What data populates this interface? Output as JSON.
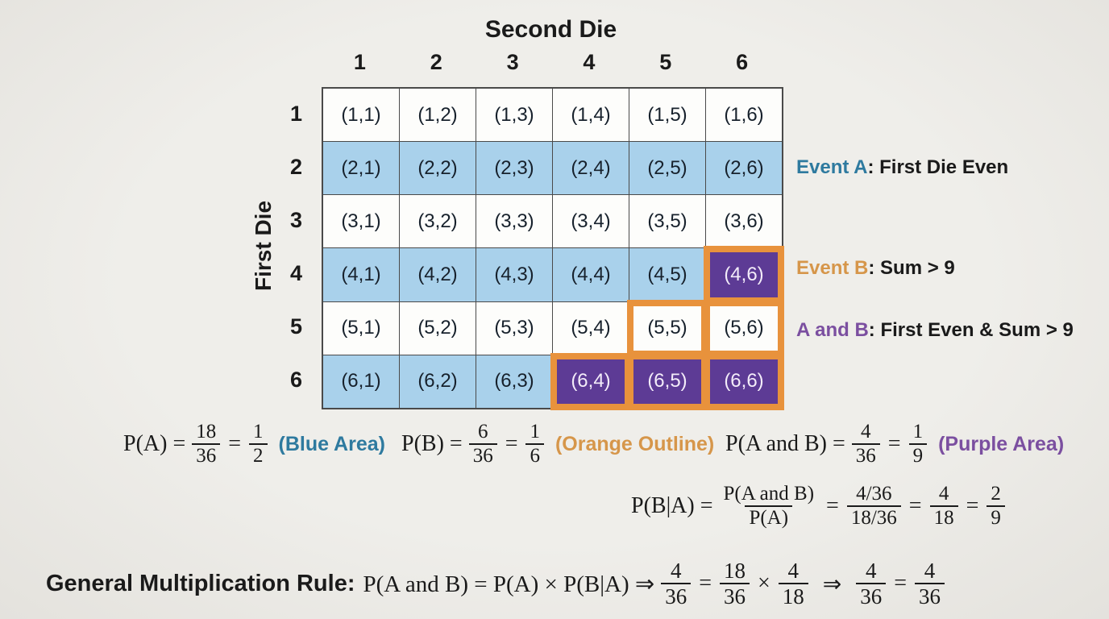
{
  "axes": {
    "col_axis": "Second Die",
    "row_axis": "First Die"
  },
  "table": {
    "col_headers": [
      "1",
      "2",
      "3",
      "4",
      "5",
      "6"
    ],
    "row_headers": [
      "1",
      "2",
      "3",
      "4",
      "5",
      "6"
    ],
    "cells": [
      [
        "(1,1)",
        "(1,2)",
        "(1,3)",
        "(1,4)",
        "(1,5)",
        "(1,6)"
      ],
      [
        "(2,1)",
        "(2,2)",
        "(2,3)",
        "(2,4)",
        "(2,5)",
        "(2,6)"
      ],
      [
        "(3,1)",
        "(3,2)",
        "(3,3)",
        "(3,4)",
        "(3,5)",
        "(3,6)"
      ],
      [
        "(4,1)",
        "(4,2)",
        "(4,3)",
        "(4,4)",
        "(4,5)",
        "(4,6)"
      ],
      [
        "(5,1)",
        "(5,2)",
        "(5,3)",
        "(5,4)",
        "(5,5)",
        "(5,6)"
      ],
      [
        "(6,1)",
        "(6,2)",
        "(6,3)",
        "(6,4)",
        "(6,5)",
        "(6,6)"
      ]
    ],
    "event_a_rows": [
      2,
      4,
      6
    ],
    "event_b_cells": [
      "4,6",
      "5,5",
      "5,6",
      "6,4",
      "6,5",
      "6,6"
    ],
    "a_and_b_cells": [
      "4,6",
      "6,4",
      "6,5",
      "6,6"
    ],
    "colors": {
      "event_a_fill": "#a9d1eb",
      "event_b_outline": "#e8923c",
      "a_and_b_fill": "#5d3b95",
      "grid_line": "#4a4a4a"
    }
  },
  "legend": [
    {
      "lead": "Event A",
      "rest": ": First Die Even",
      "color": "#2e7a9f"
    },
    {
      "lead": "Event B",
      "rest": ": Sum > 9",
      "color": "#d6964a"
    },
    {
      "lead": "A and B",
      "rest": ": First Even & Sum > 9",
      "color": "#7b4fa0"
    }
  ],
  "sym": {
    "eq": "=",
    "times": "×",
    "implies": "⇒"
  },
  "formulas": {
    "pA": {
      "lhs": "P(A) =",
      "f1": {
        "n": "18",
        "d": "36"
      },
      "f2": {
        "n": "1",
        "d": "2"
      },
      "note": "(Blue Area)",
      "note_color": "#2e7a9f"
    },
    "pB": {
      "lhs": "P(B) =",
      "f1": {
        "n": "6",
        "d": "36"
      },
      "f2": {
        "n": "1",
        "d": "6"
      },
      "note": "(Orange Outline)",
      "note_color": "#d6964a"
    },
    "pAB": {
      "lhs": "P(A and B) =",
      "f1": {
        "n": "4",
        "d": "36"
      },
      "f2": {
        "n": "1",
        "d": "9"
      },
      "note": "(Purple Area)",
      "note_color": "#7b4fa0"
    },
    "conditional": {
      "lhs": "P(B|A) =",
      "big": {
        "n": "P(A and B)",
        "d": "P(A)"
      },
      "f1": {
        "n": "4/36",
        "d": "18/36"
      },
      "f2": {
        "n": "4",
        "d": "18"
      },
      "f3": {
        "n": "2",
        "d": "9"
      }
    },
    "rule": {
      "label": "General Multiplication Rule:",
      "math": "P(A and B) = P(A) × P(B|A) ⇒",
      "f1": {
        "n": "4",
        "d": "36"
      },
      "f2": {
        "n": "18",
        "d": "36"
      },
      "f3": {
        "n": "4",
        "d": "18"
      },
      "f4": {
        "n": "4",
        "d": "36"
      },
      "f5": {
        "n": "4",
        "d": "36"
      }
    }
  }
}
